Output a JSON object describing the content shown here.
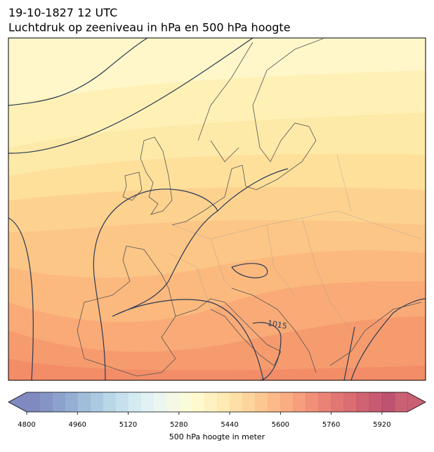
{
  "header": {
    "title_line1": "19-10-1827 12 UTC",
    "title_line2": "Luchtdruk op zeeniveau in hPa en 500 hPa hoogte"
  },
  "map": {
    "isobar_label": "1015"
  },
  "colorbar": {
    "label": "500 hPa hoogte in meter",
    "clim": [
      4800,
      6000
    ],
    "ticks": [
      4800,
      4960,
      5120,
      5280,
      5440,
      5600,
      5760,
      5920
    ],
    "extend": "both",
    "colors": [
      "#6a75b5",
      "#6f82bb",
      "#7891c3",
      "#82a0ca",
      "#8fb1d3",
      "#9cc0db",
      "#acd0e3",
      "#bcdcea",
      "#cde7ef",
      "#ddeef2",
      "#e9f4ef",
      "#f1f8e2",
      "#f8fad2",
      "#fff8c4",
      "#fff0b5",
      "#fee6a5",
      "#fedb97",
      "#fdcd8a",
      "#fcbd7e",
      "#fbad74",
      "#f99d6c",
      "#f58d66",
      "#ee7d60",
      "#e66d5d",
      "#dc5f5b",
      "#d25459",
      "#c84858",
      "#bd3e58",
      "#b33458",
      "#c0445c"
    ]
  }
}
